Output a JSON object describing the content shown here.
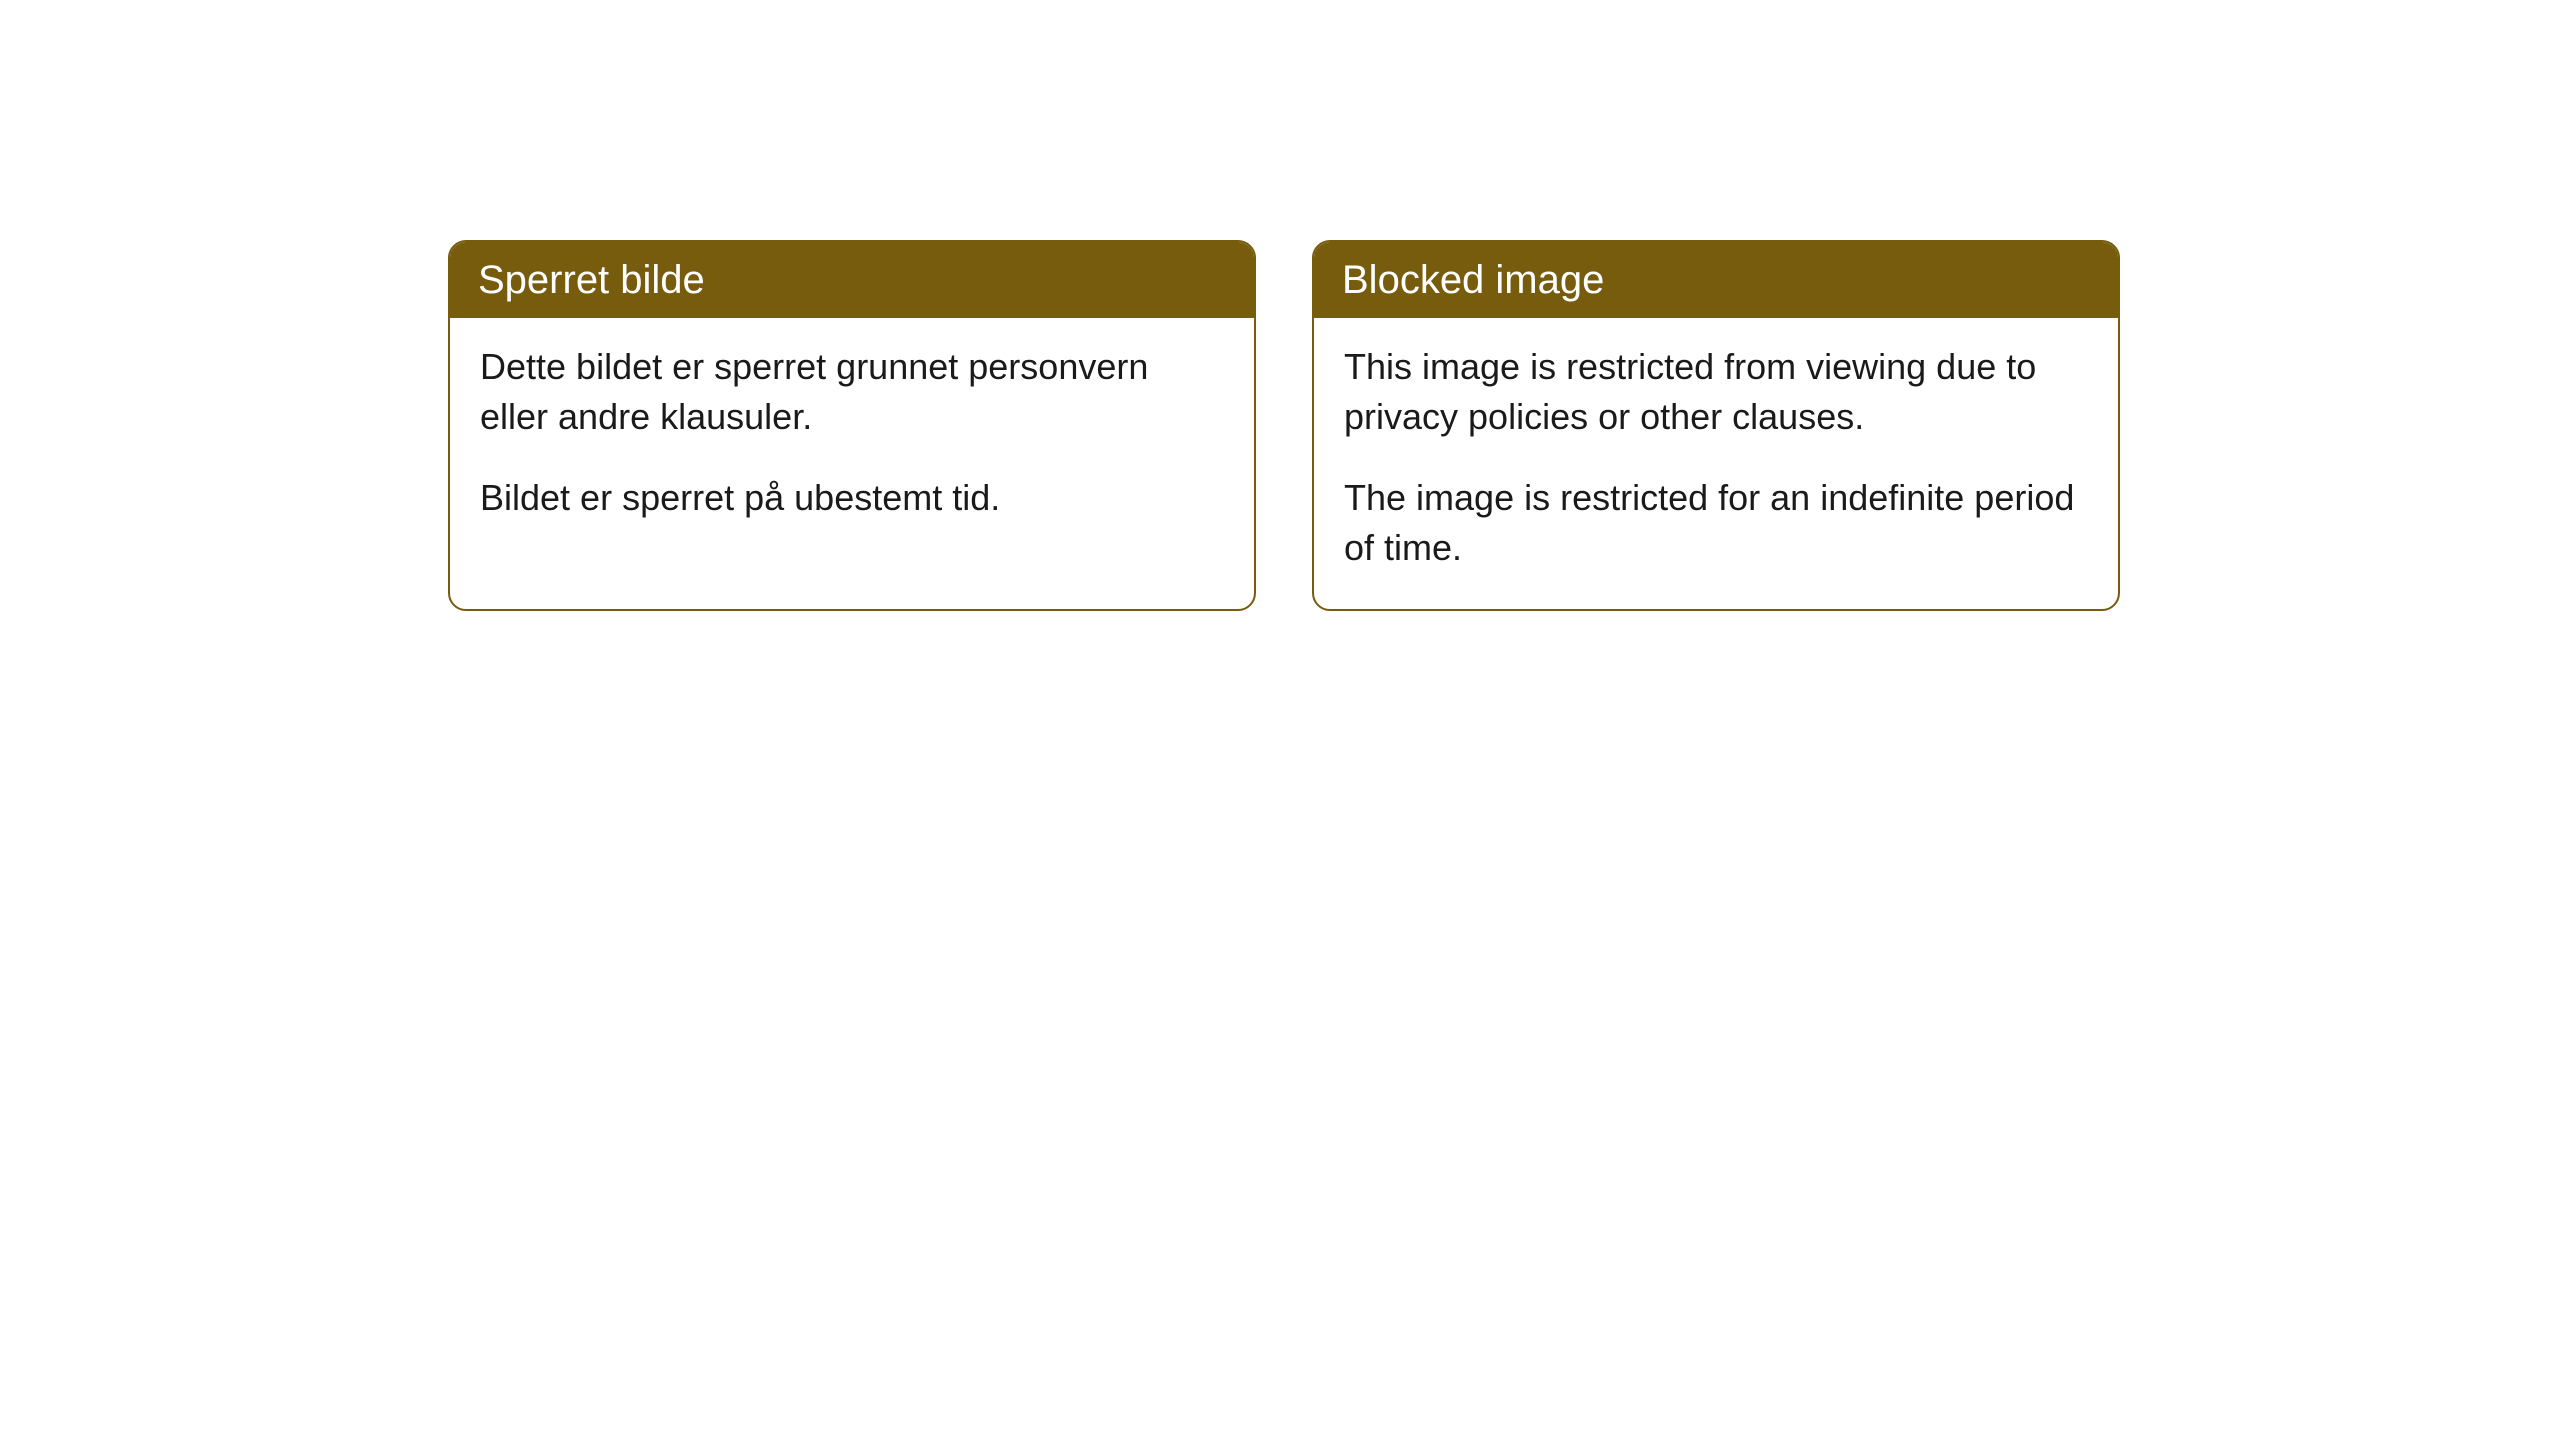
{
  "cards": [
    {
      "title": "Sperret bilde",
      "paragraph1": "Dette bildet er sperret grunnet personvern eller andre klausuler.",
      "paragraph2": "Bildet er sperret på ubestemt tid."
    },
    {
      "title": "Blocked image",
      "paragraph1": "This image is restricted from viewing due to privacy policies or other clauses.",
      "paragraph2": "The image is restricted for an indefinite period of time."
    }
  ],
  "styling": {
    "header_background_color": "#785c0e",
    "header_text_color": "#ffffff",
    "border_color": "#785c0e",
    "body_background_color": "#ffffff",
    "body_text_color": "#1a1a1a",
    "border_radius": 18,
    "header_fontsize": 40,
    "body_fontsize": 36
  }
}
